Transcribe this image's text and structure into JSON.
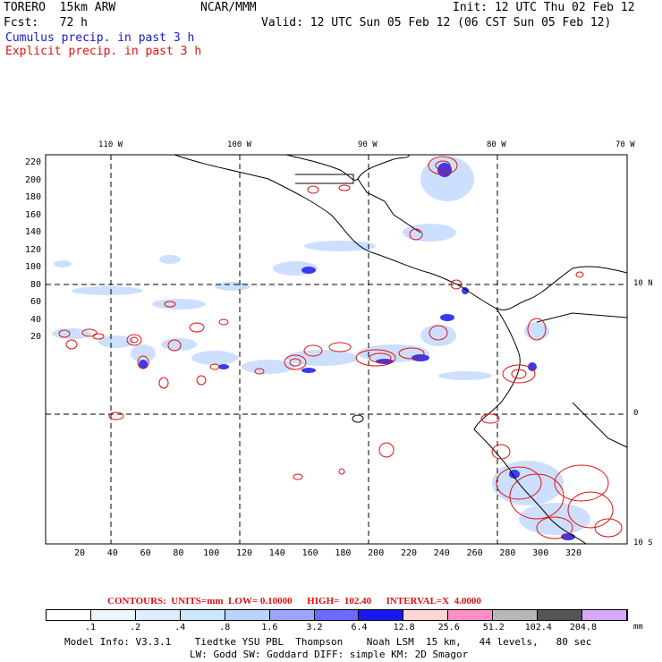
{
  "header": {
    "model_line": "TORERO  15km ARW",
    "center_label": "NCAR/MMM",
    "init_line": "Init: 12 UTC Thu 02 Feb 12",
    "fcst_line": "Fcst:   72 h",
    "valid_line": "Valid: 12 UTC Sun 05 Feb 12 (06 CST Sun 05 Feb 12)",
    "cumulus_label": "Cumulus precip. in past 3 h",
    "explicit_label": "Explicit precip. in past 3 h"
  },
  "colors": {
    "cumulus": "#1a1acc",
    "explicit": "#e01010"
  },
  "map": {
    "lon_labels": [
      "110 W",
      "100 W",
      "90 W",
      "80 W",
      "70 W"
    ],
    "lat_labels": [
      "10 N",
      "0",
      "10 S"
    ],
    "y_ticks": [
      "220",
      "200",
      "180",
      "160",
      "140",
      "120",
      "100",
      "80",
      "60",
      "40",
      "20"
    ],
    "x_ticks": [
      "20",
      "40",
      "60",
      "80",
      "100",
      "120",
      "140",
      "160",
      "180",
      "200",
      "220",
      "240",
      "260",
      "280",
      "300",
      "320"
    ]
  },
  "legend": {
    "contours_line": "CONTOURS:  UNITS=mm  LOW= 0.10000      HIGH=  102.40      INTERVAL=X  4.0000",
    "unit": "mm",
    "labels": [
      ".1",
      ".2",
      ".4",
      ".8",
      "1.6",
      "3.2",
      "6.4",
      "12.8",
      "25.6",
      "51.2",
      "102.4",
      "204.8"
    ],
    "colors": [
      "#ffffff",
      "#eef6ff",
      "#dfeeff",
      "#cfe6ff",
      "#bdd3ff",
      "#9aa6ff",
      "#6b6bff",
      "#1818ee",
      "#ffd6d6",
      "#ff8fc4",
      "#b8b8b8",
      "#555555",
      "#d8a8ff"
    ]
  },
  "footer": {
    "line1": "Model Info: V3.3.1    Tiedtke YSU PBL  Thompson    Noah LSM  15 km,   44 levels,   80 sec",
    "line2": "LW: Godd SW: Goddard DIFF: simple KM: 2D Smagor"
  }
}
